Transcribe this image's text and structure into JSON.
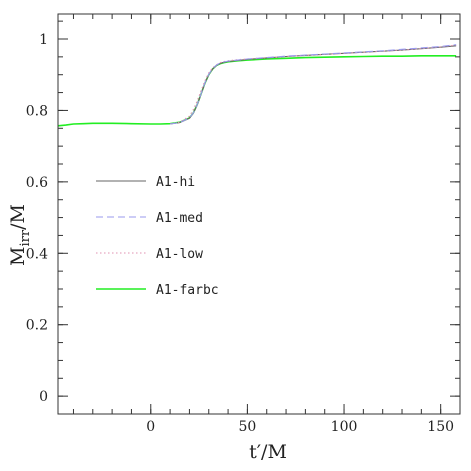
{
  "chart_data": {
    "type": "line",
    "title": "",
    "xlabel": "t′/M",
    "ylabel": "M_irr/M",
    "ylabel_main": "M",
    "ylabel_sub": "irr",
    "ylabel_rest": "/M",
    "xlim": [
      -48,
      160
    ],
    "ylim": [
      -0.05,
      1.07
    ],
    "xticks": [
      0,
      50,
      100,
      150
    ],
    "xtick_labels": [
      "0",
      "50",
      "100",
      "150"
    ],
    "yticks": [
      0,
      0.2,
      0.4,
      0.6,
      0.8,
      1.0
    ],
    "ytick_labels": [
      "0",
      "0.2",
      "0.4",
      "0.6",
      "0.8",
      "1"
    ],
    "x_minor_step": 10,
    "y_minor_step": 0.05,
    "grid": false,
    "legend_position": "center-left",
    "series": [
      {
        "name": "A1-hi",
        "color": "#666666",
        "dash": "solid",
        "x": [
          10,
          15,
          20,
          22,
          24,
          26,
          28,
          30,
          32,
          34,
          36,
          38,
          40,
          45,
          50,
          60,
          70,
          80,
          90,
          100,
          110,
          120,
          130,
          140,
          150,
          158
        ],
        "y": [
          0.762,
          0.766,
          0.778,
          0.792,
          0.815,
          0.845,
          0.876,
          0.9,
          0.916,
          0.926,
          0.932,
          0.935,
          0.937,
          0.94,
          0.943,
          0.947,
          0.951,
          0.954,
          0.957,
          0.96,
          0.963,
          0.966,
          0.969,
          0.973,
          0.977,
          0.981
        ]
      },
      {
        "name": "A1-med",
        "color": "#9999ee",
        "dash": "dashed",
        "x": [
          10,
          15,
          20,
          22,
          24,
          26,
          28,
          30,
          32,
          34,
          36,
          38,
          40,
          45,
          50,
          60,
          70,
          80,
          90,
          100,
          110,
          120,
          130,
          140,
          150,
          158
        ],
        "y": [
          0.762,
          0.766,
          0.779,
          0.793,
          0.816,
          0.846,
          0.877,
          0.901,
          0.917,
          0.927,
          0.933,
          0.936,
          0.938,
          0.941,
          0.944,
          0.948,
          0.952,
          0.955,
          0.958,
          0.961,
          0.964,
          0.967,
          0.971,
          0.975,
          0.979,
          0.984
        ]
      },
      {
        "name": "A1-low",
        "color": "#e090b0",
        "dash": "dotted",
        "x": [
          10,
          15,
          20,
          22,
          24,
          26,
          28,
          30,
          32,
          34,
          36,
          38,
          40,
          45,
          50,
          60,
          70,
          80,
          90,
          100,
          110,
          120,
          130,
          140,
          150,
          158
        ],
        "y": [
          0.762,
          0.767,
          0.784,
          0.802,
          0.826,
          0.855,
          0.883,
          0.905,
          0.919,
          0.928,
          0.934,
          0.937,
          0.939,
          0.942,
          0.944,
          0.948,
          0.951,
          0.954,
          0.957,
          0.96,
          0.963,
          0.966,
          0.969,
          0.973,
          0.978,
          0.983
        ]
      },
      {
        "name": "A1-farbc",
        "color": "#22ee22",
        "dash": "solid",
        "x": [
          -48,
          -44,
          -40,
          -35,
          -30,
          -20,
          -10,
          0,
          5,
          10,
          15,
          20,
          22,
          24,
          26,
          28,
          30,
          32,
          34,
          36,
          38,
          40,
          45,
          50,
          60,
          70,
          80,
          90,
          100,
          110,
          120,
          130,
          140,
          150,
          158
        ],
        "y": [
          0.757,
          0.759,
          0.762,
          0.763,
          0.764,
          0.764,
          0.763,
          0.762,
          0.762,
          0.763,
          0.767,
          0.779,
          0.793,
          0.816,
          0.846,
          0.876,
          0.9,
          0.916,
          0.926,
          0.931,
          0.934,
          0.936,
          0.939,
          0.941,
          0.944,
          0.946,
          0.948,
          0.949,
          0.95,
          0.951,
          0.952,
          0.952,
          0.953,
          0.953,
          0.953
        ]
      }
    ]
  }
}
